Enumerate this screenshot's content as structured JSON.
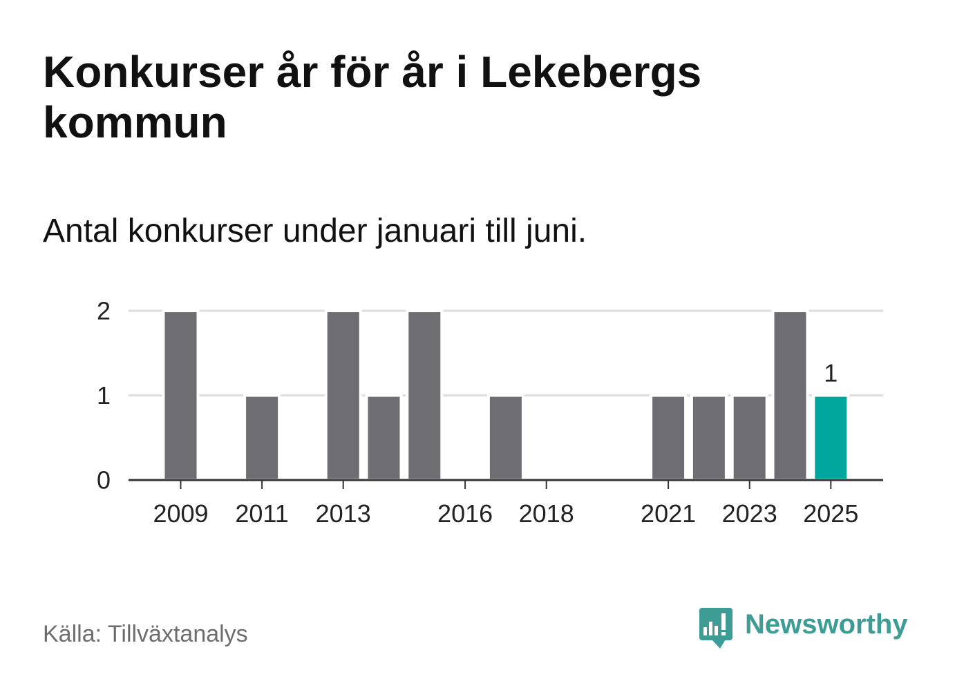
{
  "source": "Källa: Tillväxtanalys",
  "brand": {
    "name": "Newsworthy",
    "icon": "newsworthy-logo-icon",
    "color": "#3d9c94"
  },
  "colors": {
    "text": "#111111",
    "muted": "#6d6d70",
    "bar": "#6e6d72",
    "highlight": "#00a69c",
    "grid": "#dddddd",
    "axis": "#333333"
  },
  "chart_data": {
    "type": "bar",
    "title": "Konkurser år för år i Lekebergs kommun",
    "subtitle": "Antal konkurser under januari till juni.",
    "categories": [
      "2009",
      "2010",
      "2011",
      "2012",
      "2013",
      "2014",
      "2015",
      "2016",
      "2017",
      "2018",
      "2019",
      "2020",
      "2021",
      "2022",
      "2023",
      "2024",
      "2025"
    ],
    "values": [
      2,
      0,
      1,
      0,
      2,
      1,
      2,
      0,
      1,
      0,
      0,
      0,
      1,
      1,
      1,
      2,
      1
    ],
    "x_tick_labels": [
      "2009",
      "2011",
      "2013",
      "2016",
      "2018",
      "2021",
      "2023",
      "2025"
    ],
    "y_ticks": [
      0,
      1,
      2
    ],
    "ylim": [
      0,
      2
    ],
    "grid": true,
    "highlight_category": "2025",
    "data_labels": [
      {
        "category": "2025",
        "text": "1"
      }
    ]
  }
}
